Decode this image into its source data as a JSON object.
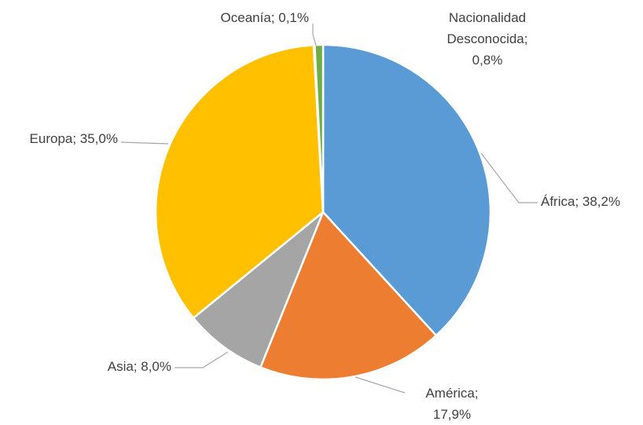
{
  "chart_data": {
    "type": "pie",
    "values": [
      38.2,
      17.9,
      8.0,
      35.0,
      0.1,
      0.8
    ],
    "value_labels": [
      "África; 38,2%",
      "América; 17,9%",
      "Asia; 8,0%",
      "Europa; 35,0%",
      "Oceanía; 0,1%",
      "Nacionalidad Desconocida; 0,8%"
    ],
    "colors": [
      "#5b9bd5",
      "#ed7d31",
      "#a5a5a5",
      "#ffc000",
      "#4472c4",
      "#70ad47"
    ]
  }
}
